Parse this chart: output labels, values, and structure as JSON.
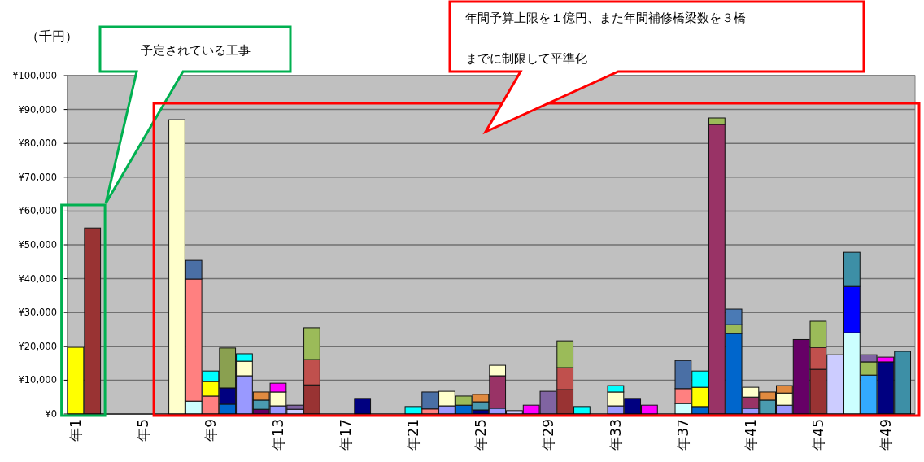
{
  "chart_data": {
    "type": "bar",
    "stacked": true,
    "ylabel": "（千円）",
    "categories": [
      "年1",
      null,
      null,
      null,
      "年5",
      null,
      null,
      null,
      "年9",
      null,
      null,
      null,
      "年13",
      null,
      null,
      null,
      "年17",
      null,
      null,
      null,
      "年21",
      null,
      null,
      null,
      "年25",
      null,
      null,
      null,
      "年29",
      null,
      null,
      null,
      "年33",
      null,
      null,
      null,
      "年37",
      null,
      null,
      null,
      "年41",
      null,
      null,
      null,
      "年45",
      null,
      null,
      null,
      "年49",
      null
    ],
    "series": [
      {
        "values": [
          19700,
          55000,
          null,
          null,
          null,
          null,
          87000,
          3800,
          5300,
          2900,
          11300,
          1400,
          2400,
          1400,
          8600,
          null,
          null,
          4600,
          null,
          null,
          2200,
          1500,
          2400,
          2600,
          1200,
          1700,
          1000,
          2600,
          6700,
          7200,
          2200,
          null,
          2400,
          4600,
          2600,
          null,
          3100,
          2200,
          85600,
          23800,
          1700,
          4100,
          2600,
          22000,
          13200,
          17500,
          24000,
          11500,
          15400,
          18500
        ],
        "colors": [
          "#ffff00",
          "#993333",
          null,
          null,
          null,
          null,
          "#ffffcc",
          "#ccffff",
          "#ff8080",
          "#0066cc",
          "#9999ff",
          "#660066",
          "#9999ff",
          "#ccccff",
          "#993333",
          null,
          null,
          "#000080",
          null,
          null,
          "#00ffff",
          "#ff8080",
          "#9999ff",
          "#0066cc",
          "#000080",
          "#9999ff",
          "#ccccff",
          "#ff00ff",
          "#8064a2",
          "#993333",
          "#00ffff",
          null,
          "#9999ff",
          "#000080",
          "#ff00ff",
          null,
          "#ccffff",
          "#0066cc",
          "#993366",
          "#0066cc",
          "#9999ff",
          "#4a9bb0",
          "#9999ff",
          "#660066",
          "#993333",
          "#ccccff",
          "#ccffff",
          "#33aaff",
          "#000080",
          "#3d8fa6"
        ]
      },
      {
        "values": [
          null,
          null,
          null,
          null,
          null,
          null,
          null,
          36100,
          4300,
          4800,
          4300,
          2700,
          4100,
          1200,
          7500,
          null,
          null,
          null,
          null,
          null,
          null,
          5000,
          4300,
          2700,
          2400,
          9600,
          null,
          null,
          null,
          6500,
          null,
          null,
          4100,
          null,
          null,
          null,
          4400,
          5700,
          1900,
          2600,
          3300,
          2400,
          3600,
          null,
          6500,
          null,
          13700,
          3900,
          1400,
          null
        ],
        "colors": [
          null,
          null,
          null,
          null,
          null,
          null,
          null,
          "#ff8080",
          "#ffff00",
          "#000080",
          "#ffffcc",
          "#4a9bb0",
          "#ffffcc",
          "#8064a2",
          "#c0504d",
          null,
          null,
          null,
          null,
          null,
          null,
          "#4a6fa5",
          "#ffffcc",
          "#9bbb59",
          "#4a9bb0",
          "#993366",
          null,
          null,
          null,
          "#c0504d",
          null,
          null,
          "#ffffcc",
          null,
          null,
          null,
          "#ff8080",
          "#ffff00",
          "#9bbb59",
          "#9bbb59",
          "#993366",
          "#e08a40",
          "#ffffcc",
          null,
          "#c0504d",
          null,
          "#0000ff",
          "#9bbb59",
          "#ff00ff",
          null
        ]
      },
      {
        "values": [
          null,
          null,
          null,
          null,
          null,
          null,
          null,
          5500,
          3100,
          11800,
          2200,
          2400,
          2600,
          null,
          9400,
          null,
          null,
          null,
          null,
          null,
          null,
          null,
          null,
          null,
          2200,
          3100,
          null,
          null,
          null,
          7900,
          null,
          null,
          1900,
          null,
          null,
          null,
          8300,
          4800,
          null,
          4600,
          2900,
          null,
          2200,
          null,
          7700,
          null,
          10100,
          2100,
          null,
          null
        ],
        "colors": [
          null,
          null,
          null,
          null,
          null,
          null,
          null,
          "#4a6fa5",
          "#00ffff",
          "#8aa050",
          "#00ffff",
          "#e08a40",
          "#ff00ff",
          null,
          "#9bbb59",
          null,
          null,
          null,
          null,
          null,
          null,
          null,
          null,
          null,
          "#e08a40",
          "#ffffcc",
          null,
          null,
          null,
          "#9bbb59",
          null,
          null,
          "#00ffff",
          null,
          null,
          null,
          "#4a6fa5",
          "#00ffff",
          null,
          "#4a7ab5",
          "#ffffcc",
          null,
          "#e08a40",
          null,
          "#9bbb59",
          null,
          "#3d8fa6",
          "#8064a2",
          null,
          null
        ]
      }
    ],
    "ylim": [
      0,
      100000
    ],
    "yticks": [
      {
        "value": 0,
        "label": "¥0"
      },
      {
        "value": 10000,
        "label": "¥10,000"
      },
      {
        "value": 20000,
        "label": "¥20,000"
      },
      {
        "value": 30000,
        "label": "¥30,000"
      },
      {
        "value": 40000,
        "label": "¥40,000"
      },
      {
        "value": 50000,
        "label": "¥50,000"
      },
      {
        "value": 60000,
        "label": "¥60,000"
      },
      {
        "value": 70000,
        "label": "¥70,000"
      },
      {
        "value": 80000,
        "label": "¥80,000"
      },
      {
        "value": 90000,
        "label": "¥90,000"
      },
      {
        "value": 100000,
        "label": "¥100,000"
      }
    ],
    "grid": "y",
    "annotations": [
      "予定されている工事",
      "年間予算上限を１億円、また年間補修橋梁数を３橋",
      "までに制限して平準化"
    ]
  }
}
